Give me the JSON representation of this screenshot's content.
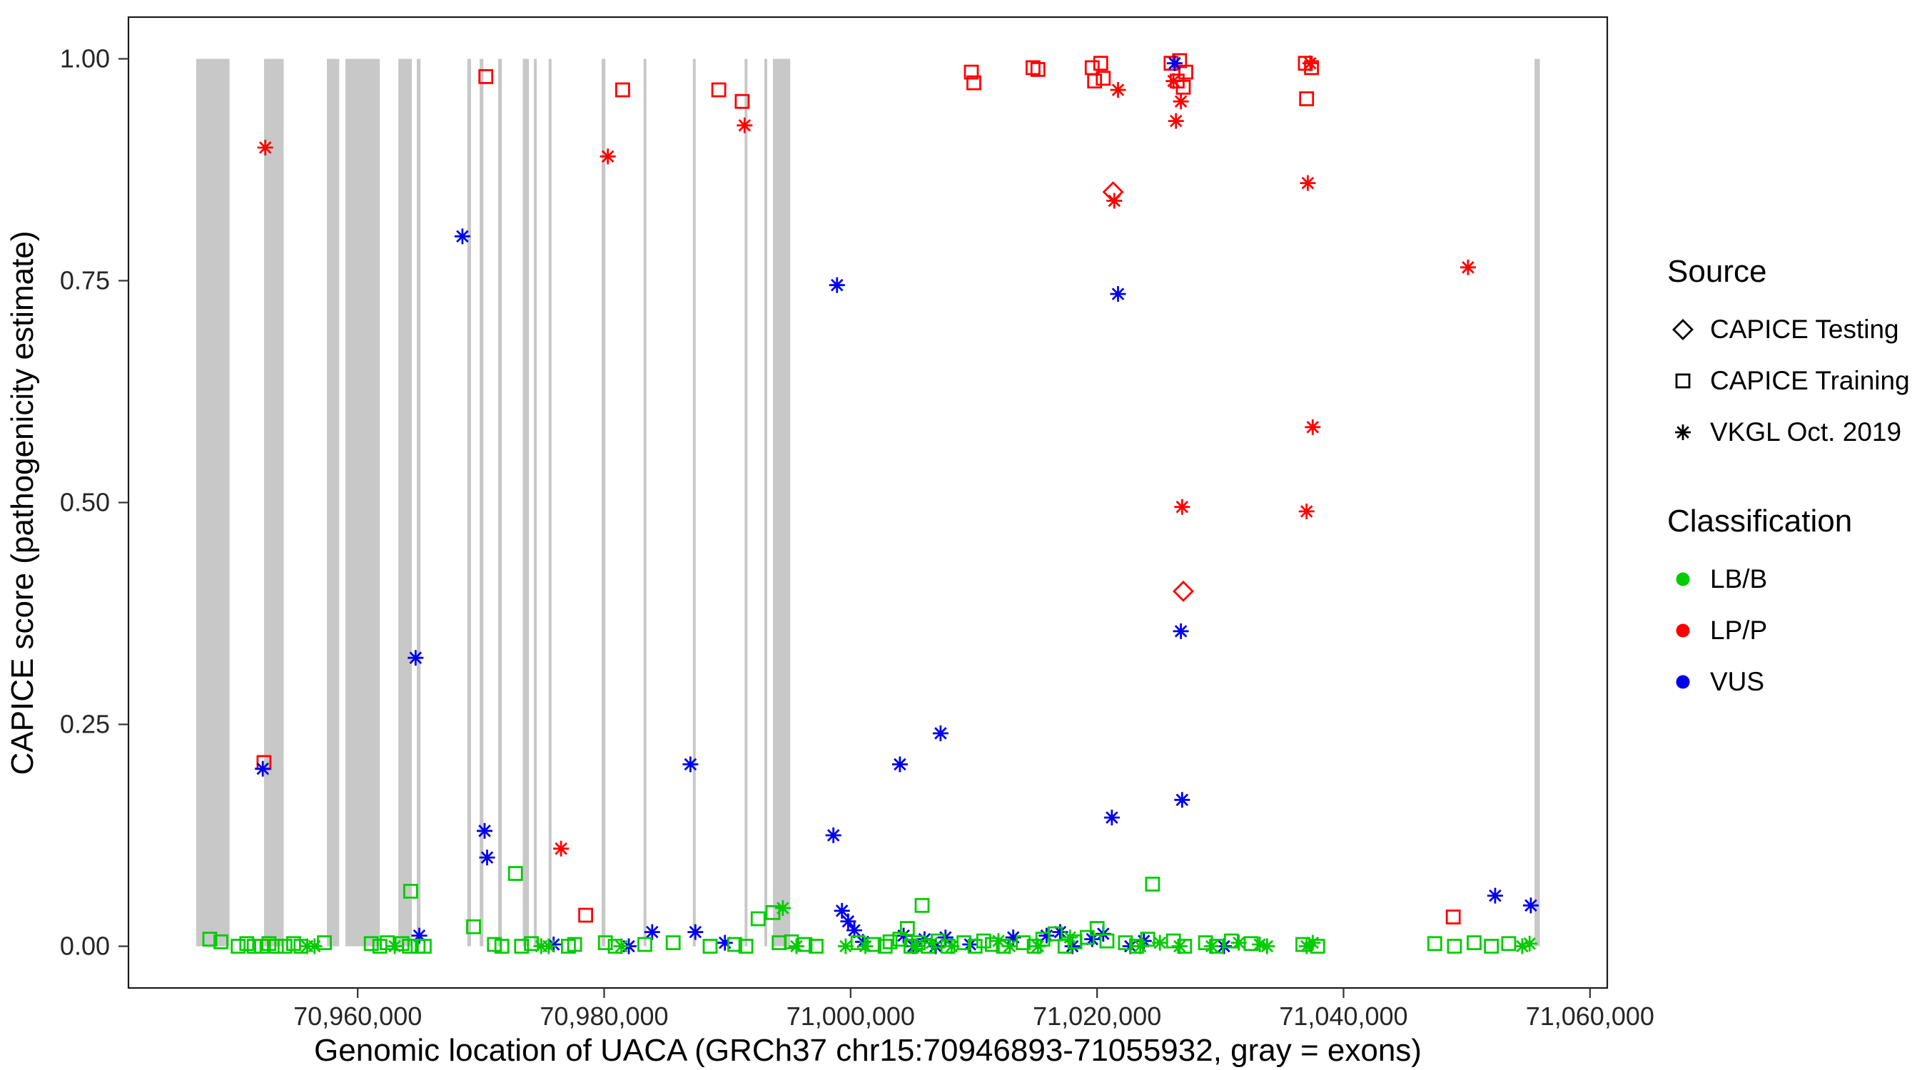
{
  "figure": {
    "background": "#FFFFFF",
    "x_axis": {
      "title": "Genomic location of UACA (GRCh37 chr15:70946893-71055932, gray = exons)",
      "range": [
        70941400,
        71061400
      ],
      "ticks": [
        {
          "value": 70960000,
          "label": "70,960,000"
        },
        {
          "value": 70980000,
          "label": "70,980,000"
        },
        {
          "value": 71000000,
          "label": "71,000,000"
        },
        {
          "value": 71020000,
          "label": "71,020,000"
        },
        {
          "value": 71040000,
          "label": "71,040,000"
        },
        {
          "value": 71060000,
          "label": "71,060,000"
        }
      ]
    },
    "y_axis": {
      "title": "CAPICE score (pathogenicity estimate)",
      "range": [
        -0.047,
        1.047
      ],
      "ticks": [
        {
          "value": 0,
          "label": "0.00"
        },
        {
          "value": 0.25,
          "label": "0.25"
        },
        {
          "value": 0.5,
          "label": "0.50"
        },
        {
          "value": 0.75,
          "label": "0.75"
        },
        {
          "value": 1,
          "label": "1.00"
        }
      ]
    },
    "legend": {
      "source": {
        "title": "Source",
        "items": [
          {
            "label": "CAPICE Testing",
            "marker": "diamond"
          },
          {
            "label": "CAPICE Training",
            "marker": "square"
          },
          {
            "label": "VKGL Oct. 2019",
            "marker": "asterisk"
          }
        ]
      },
      "classification": {
        "title": "Classification",
        "items": [
          {
            "label": "LB/B",
            "color": "#00CC00"
          },
          {
            "label": "LP/P",
            "color": "#FF0000"
          },
          {
            "label": "VUS",
            "color": "#0000EE"
          }
        ]
      }
    }
  },
  "chart_data": {
    "type": "scatter",
    "title": "",
    "xlabel": "Genomic location of UACA (GRCh37 chr15:70946893-71055932, gray = exons)",
    "ylabel": "CAPICE score (pathogenicity estimate)",
    "xlim": [
      70941400,
      71061400
    ],
    "ylim": [
      -0.047,
      1.047
    ],
    "grid": false,
    "legend_position": "right",
    "exon_color": "#C8C8C8",
    "exons": [
      [
        70946900,
        70949600
      ],
      [
        70952400,
        70954000
      ],
      [
        70957500,
        70958500
      ],
      [
        70959000,
        70961800
      ],
      [
        70963300,
        70964400
      ],
      [
        70964800,
        70965100
      ],
      [
        70968900,
        70969200
      ],
      [
        70969900,
        70970200
      ],
      [
        70971400,
        70971700
      ],
      [
        70973400,
        70973900
      ],
      [
        70974300,
        70974500
      ],
      [
        70975500,
        70975700
      ],
      [
        70979800,
        70980100
      ],
      [
        70983200,
        70983400
      ],
      [
        70987200,
        70987400
      ],
      [
        70991400,
        70991600
      ],
      [
        70993000,
        70993200
      ],
      [
        70993700,
        70995100
      ],
      [
        71055500,
        71055932
      ]
    ],
    "series": [
      {
        "name": "CAPICE Testing / LP-P",
        "source": "CAPICE Testing",
        "classification": "LP/P",
        "marker": "diamond",
        "color": "#FF0000",
        "points": [
          [
            71021300,
            0.85
          ],
          [
            71027000,
            0.4
          ]
        ]
      },
      {
        "name": "CAPICE Training / LP-P",
        "source": "CAPICE Training",
        "classification": "LP/P",
        "marker": "square",
        "color": "#FF0000",
        "points": [
          [
            70952400,
            0.207
          ],
          [
            70970400,
            0.98
          ],
          [
            70978500,
            0.035
          ],
          [
            70981500,
            0.965
          ],
          [
            70989300,
            0.965
          ],
          [
            70991200,
            0.952
          ],
          [
            71009800,
            0.985
          ],
          [
            71010000,
            0.973
          ],
          [
            71014800,
            0.99
          ],
          [
            71015200,
            0.988
          ],
          [
            71019600,
            0.99
          ],
          [
            71019800,
            0.975
          ],
          [
            71020300,
            0.995
          ],
          [
            71020500,
            0.978
          ],
          [
            71026000,
            0.995
          ],
          [
            71026500,
            0.975
          ],
          [
            71026700,
            0.998
          ],
          [
            71027000,
            0.968
          ],
          [
            71027200,
            0.985
          ],
          [
            71036900,
            0.995
          ],
          [
            71037000,
            0.955
          ],
          [
            71037400,
            0.99
          ],
          [
            71048900,
            0.033
          ]
        ]
      },
      {
        "name": "VKGL Oct. 2019 / LP-P",
        "source": "VKGL Oct. 2019",
        "classification": "LP/P",
        "marker": "asterisk",
        "color": "#FF0000",
        "points": [
          [
            70952500,
            0.9
          ],
          [
            70976500,
            0.11
          ],
          [
            70980300,
            0.89
          ],
          [
            70991400,
            0.925
          ],
          [
            71021400,
            0.84
          ],
          [
            71021700,
            0.965
          ],
          [
            71026200,
            0.975
          ],
          [
            71026400,
            0.93
          ],
          [
            71026800,
            0.952
          ],
          [
            71026900,
            0.495
          ],
          [
            71037000,
            0.49
          ],
          [
            71037100,
            0.86
          ],
          [
            71037300,
            0.995
          ],
          [
            71037500,
            0.585
          ],
          [
            71050100,
            0.765
          ]
        ]
      },
      {
        "name": "VKGL Oct. 2019 / VUS",
        "source": "VKGL Oct. 2019",
        "classification": "VUS",
        "marker": "asterisk",
        "color": "#0000EE",
        "points": [
          [
            70952300,
            0.2
          ],
          [
            70964700,
            0.325
          ],
          [
            70965000,
            0.012
          ],
          [
            70968500,
            0.8
          ],
          [
            70970300,
            0.13
          ],
          [
            70970500,
            0.1
          ],
          [
            70975900,
            0.002
          ],
          [
            70982000,
            0.0
          ],
          [
            70983900,
            0.016
          ],
          [
            70987000,
            0.205
          ],
          [
            70987400,
            0.016
          ],
          [
            70989800,
            0.004
          ],
          [
            70998600,
            0.125
          ],
          [
            70998900,
            0.745
          ],
          [
            70999300,
            0.04
          ],
          [
            70999800,
            0.028
          ],
          [
            71000300,
            0.018
          ],
          [
            71001000,
            0.005
          ],
          [
            71004000,
            0.205
          ],
          [
            71004300,
            0.012
          ],
          [
            71005100,
            0.0
          ],
          [
            71006000,
            0.008
          ],
          [
            71006900,
            0.0
          ],
          [
            71007300,
            0.24
          ],
          [
            71007700,
            0.01
          ],
          [
            71009700,
            0.002
          ],
          [
            71013200,
            0.01
          ],
          [
            71015900,
            0.012
          ],
          [
            71017000,
            0.016
          ],
          [
            71018000,
            0.0
          ],
          [
            71019600,
            0.008
          ],
          [
            71020500,
            0.014
          ],
          [
            71021200,
            0.145
          ],
          [
            71021700,
            0.735
          ],
          [
            71022700,
            0.0
          ],
          [
            71023800,
            0.006
          ],
          [
            71026300,
            0.995
          ],
          [
            71026800,
            0.355
          ],
          [
            71026900,
            0.165
          ],
          [
            71030300,
            0.0
          ],
          [
            71052300,
            0.057
          ],
          [
            71055200,
            0.046
          ]
        ]
      },
      {
        "name": "CAPICE Training / LB-B",
        "source": "CAPICE Training",
        "classification": "LB/B",
        "marker": "square",
        "color": "#00CC00",
        "points": [
          [
            70948000,
            0.008
          ],
          [
            70948900,
            0.005
          ],
          [
            70950300,
            0.0
          ],
          [
            70951000,
            0.003
          ],
          [
            70951600,
            0.0
          ],
          [
            70952200,
            0.0
          ],
          [
            70952800,
            0.003
          ],
          [
            70953400,
            0.0
          ],
          [
            70954100,
            0.0
          ],
          [
            70954800,
            0.003
          ],
          [
            70955400,
            0.0
          ],
          [
            70957300,
            0.004
          ],
          [
            70961100,
            0.003
          ],
          [
            70961800,
            0.0
          ],
          [
            70962400,
            0.004
          ],
          [
            70963600,
            0.003
          ],
          [
            70964200,
            0.0
          ],
          [
            70964300,
            0.062
          ],
          [
            70964900,
            0.0
          ],
          [
            70965400,
            0.0
          ],
          [
            70969400,
            0.022
          ],
          [
            70971100,
            0.002
          ],
          [
            70971700,
            0.0
          ],
          [
            70972800,
            0.082
          ],
          [
            70973300,
            0.0
          ],
          [
            70974100,
            0.003
          ],
          [
            70977100,
            0.0
          ],
          [
            70977600,
            0.002
          ],
          [
            70980100,
            0.004
          ],
          [
            70980900,
            0.0
          ],
          [
            70983300,
            0.002
          ],
          [
            70985600,
            0.004
          ],
          [
            70988600,
            0.0
          ],
          [
            70990600,
            0.002
          ],
          [
            70991500,
            0.0
          ],
          [
            70992500,
            0.031
          ],
          [
            70993700,
            0.038
          ],
          [
            70994200,
            0.004
          ],
          [
            70995200,
            0.005
          ],
          [
            70996300,
            0.002
          ],
          [
            70997200,
            0.0
          ],
          [
            71000600,
            0.004
          ],
          [
            71001900,
            0.002
          ],
          [
            71002800,
            0.0
          ],
          [
            71003200,
            0.005
          ],
          [
            71004000,
            0.008
          ],
          [
            71004600,
            0.02
          ],
          [
            71004900,
            0.0
          ],
          [
            71005500,
            0.004
          ],
          [
            71005800,
            0.046
          ],
          [
            71006300,
            0.0
          ],
          [
            71007100,
            0.006
          ],
          [
            71007900,
            0.0
          ],
          [
            71009200,
            0.004
          ],
          [
            71010100,
            0.0
          ],
          [
            71010800,
            0.006
          ],
          [
            71011500,
            0.002
          ],
          [
            71012400,
            0.0
          ],
          [
            71014000,
            0.004
          ],
          [
            71014900,
            0.0
          ],
          [
            71015600,
            0.008
          ],
          [
            71016600,
            0.014
          ],
          [
            71017400,
            0.0
          ],
          [
            71018200,
            0.005
          ],
          [
            71019200,
            0.01
          ],
          [
            71020000,
            0.02
          ],
          [
            71020800,
            0.006
          ],
          [
            71022300,
            0.004
          ],
          [
            71023200,
            0.0
          ],
          [
            71024100,
            0.008
          ],
          [
            71024500,
            0.07
          ],
          [
            71026200,
            0.006
          ],
          [
            71027100,
            0.0
          ],
          [
            71028800,
            0.004
          ],
          [
            71029700,
            0.0
          ],
          [
            71030900,
            0.006
          ],
          [
            71032500,
            0.003
          ],
          [
            71036700,
            0.002
          ],
          [
            71037900,
            0.0
          ],
          [
            71047400,
            0.003
          ],
          [
            71049000,
            0.0
          ],
          [
            71050600,
            0.004
          ],
          [
            71052000,
            0.0
          ],
          [
            71053400,
            0.003
          ]
        ]
      },
      {
        "name": "VKGL Oct. 2019 / LB-B",
        "source": "VKGL Oct. 2019",
        "classification": "LB/B",
        "marker": "asterisk",
        "color": "#00CC00",
        "points": [
          [
            70955900,
            0.0
          ],
          [
            70956500,
            0.0
          ],
          [
            70963000,
            0.0
          ],
          [
            70974900,
            0.0
          ],
          [
            70975500,
            0.0
          ],
          [
            70981400,
            0.0
          ],
          [
            70994500,
            0.043
          ],
          [
            70995600,
            0.0
          ],
          [
            70999600,
            0.0
          ],
          [
            71001200,
            0.0
          ],
          [
            71005300,
            0.0
          ],
          [
            71006600,
            0.004
          ],
          [
            71008200,
            0.0
          ],
          [
            71012000,
            0.006
          ],
          [
            71012900,
            0.0
          ],
          [
            71015200,
            0.0
          ],
          [
            71017800,
            0.01
          ],
          [
            71023500,
            0.0
          ],
          [
            71025100,
            0.004
          ],
          [
            71026700,
            0.0
          ],
          [
            71029300,
            0.0
          ],
          [
            71031500,
            0.004
          ],
          [
            71033200,
            0.002
          ],
          [
            71033800,
            0.0
          ],
          [
            71037000,
            0.0
          ],
          [
            71037500,
            0.004
          ],
          [
            71054500,
            0.0
          ],
          [
            71055100,
            0.003
          ]
        ]
      }
    ]
  }
}
